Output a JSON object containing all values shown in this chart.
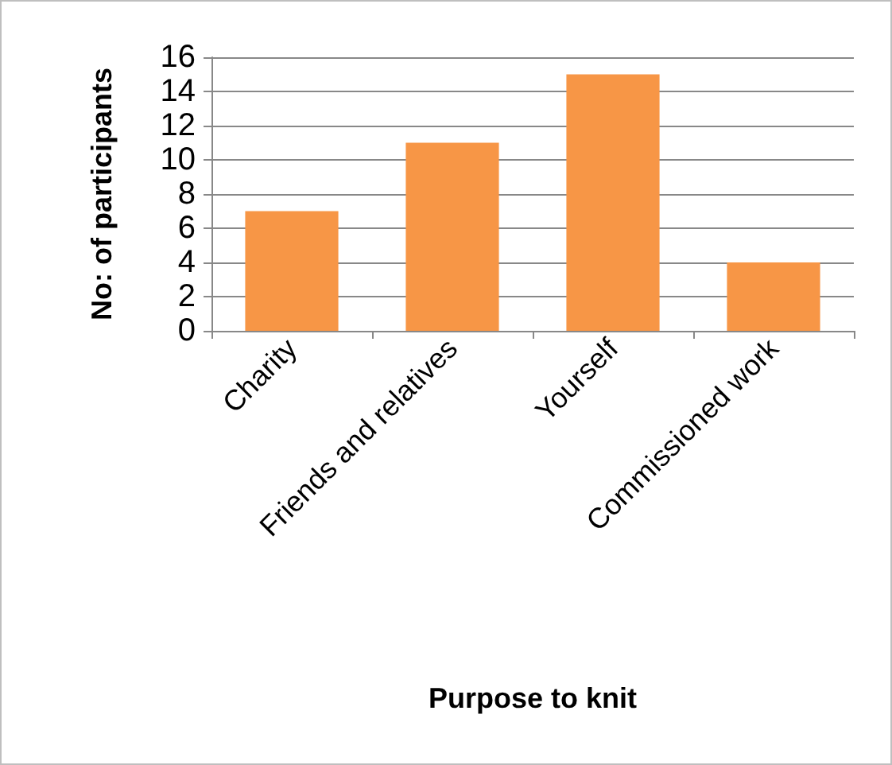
{
  "chart_data": {
    "type": "bar",
    "xlabel": "Purpose to knit",
    "ylabel": "No: of participants",
    "categories": [
      "Charity",
      "Friends and relatives",
      "Yourself",
      "Commissioned work"
    ],
    "values": [
      7,
      11,
      15,
      4
    ],
    "color": "#f79646",
    "ylim": [
      0,
      16
    ],
    "yticks": [
      0,
      2,
      4,
      6,
      8,
      10,
      12,
      14,
      16
    ],
    "grid": "y"
  }
}
